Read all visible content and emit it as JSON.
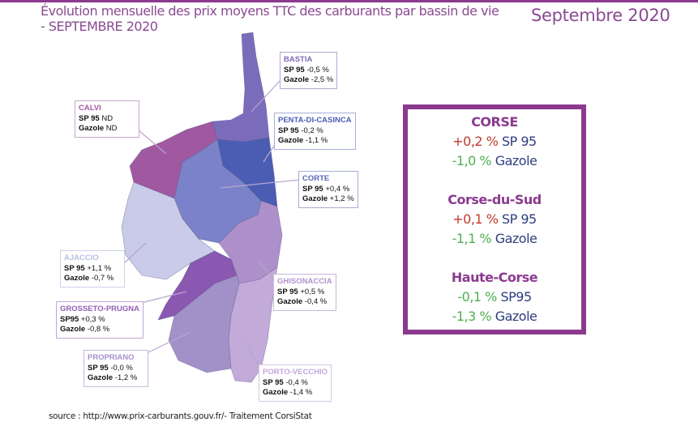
{
  "header": {
    "title_line1": "Évolution mensuelle des prix moyens TTC des carburants par bassin de vie",
    "title_line2": "- SEPTEMBRE 2020",
    "month": "Septembre 2020"
  },
  "colors": {
    "accent": "#8b3a8f",
    "increase": "#c0392b",
    "decrease": "#4caf50",
    "fuel": "#2e3e7e"
  },
  "basins": [
    {
      "name": "BASTIA",
      "sp_label": "SP 95",
      "sp": "-0,5 %",
      "gazole_label": "Gazole",
      "gazole": "-2,5 %",
      "color": "#7b6cbb"
    },
    {
      "name": "CALVI",
      "sp_label": "SP 95",
      "sp": "ND",
      "gazole_label": "Gazole",
      "gazole": "ND",
      "color": "#a058a0"
    },
    {
      "name": "PENTA-DI-CASINCA",
      "sp_label": "SP 95",
      "sp": "-0,2 %",
      "gazole_label": "Gazole",
      "gazole": "-1,1 %",
      "color": "#4b5db3"
    },
    {
      "name": "CORTE",
      "sp_label": "SP 95",
      "sp": "+0,4 %",
      "gazole_label": "Gazole",
      "gazole": "+1,2 %",
      "color": "#7b82c9"
    },
    {
      "name": "AJACCIO",
      "sp_label": "SP 95",
      "sp": "+1,1 %",
      "gazole_label": "Gazole",
      "gazole": "-0,7 %",
      "color": "#c9cbe8"
    },
    {
      "name": "GHISONACCIA",
      "sp_label": "SP 95",
      "sp": "+0,5 %",
      "gazole_label": "Gazole",
      "gazole": "-0,4 %",
      "color": "#ad8fc9"
    },
    {
      "name": "GROSSETO-PRUGNA",
      "sp_label": "SP95",
      "sp": "+0,3 %",
      "gazole_label": "Gazole",
      "gazole": "-0,8 %",
      "color": "#8a58b0"
    },
    {
      "name": "PROPRIANO",
      "sp_label": "SP 95",
      "sp": "-0,0 %",
      "gazole_label": "Gazole",
      "gazole": "-1,2 %",
      "color": "#a290c9"
    },
    {
      "name": "PORTO-VECCHIO",
      "sp_label": "SP 95",
      "sp": "-0,4 %",
      "gazole_label": "Gazole",
      "gazole": "-1,4 %",
      "color": "#c2aad9"
    }
  ],
  "summary": [
    {
      "title": "CORSE",
      "sp": "+0,2 %",
      "sp_label": "SP 95",
      "gazole": "-1,0 %",
      "gazole_label": "Gazole"
    },
    {
      "title": "Corse-du-Sud",
      "sp": "+0,1 %",
      "sp_label": "SP 95",
      "gazole": "-1,1 %",
      "gazole_label": "Gazole"
    },
    {
      "title": "Haute-Corse",
      "sp": "-0,1 %",
      "sp_label": "SP95",
      "gazole": "-1,3 %",
      "gazole_label": "Gazole"
    }
  ],
  "footer": {
    "source": "source : http://www.prix-carburants.gouv.fr/- Traitement CorsiStat"
  }
}
